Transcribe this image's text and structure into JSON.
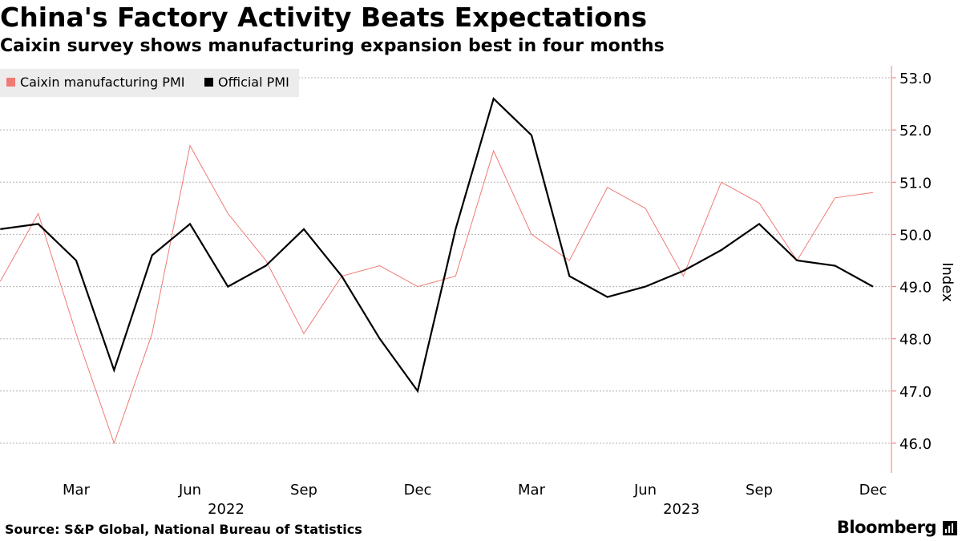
{
  "title": "China's Factory Activity Beats Expectations",
  "subtitle": "Caixin survey shows manufacturing expansion best in four months",
  "source": "Source: S&P Global, National Bureau of Statistics",
  "brand": "Bloomberg",
  "chart_data": {
    "type": "line",
    "ylabel": "Index",
    "ylim": [
      45.5,
      53.2
    ],
    "y_ticks": [
      "46.0",
      "47.0",
      "48.0",
      "49.0",
      "50.0",
      "51.0",
      "52.0",
      "53.0"
    ],
    "x_ticks": [
      {
        "month": "Mar",
        "year": ""
      },
      {
        "month": "Jun",
        "year": "2022"
      },
      {
        "month": "Sep",
        "year": ""
      },
      {
        "month": "Dec",
        "year": ""
      },
      {
        "month": "Mar",
        "year": ""
      },
      {
        "month": "Jun",
        "year": "2023"
      },
      {
        "month": "Sep",
        "year": ""
      },
      {
        "month": "Dec",
        "year": ""
      }
    ],
    "x": [
      "2022-01",
      "2022-02",
      "2022-03",
      "2022-04",
      "2022-05",
      "2022-06",
      "2022-07",
      "2022-08",
      "2022-09",
      "2022-10",
      "2022-11",
      "2022-12",
      "2023-01",
      "2023-02",
      "2023-03",
      "2023-04",
      "2023-05",
      "2023-06",
      "2023-07",
      "2023-08",
      "2023-09",
      "2023-10",
      "2023-11",
      "2023-12"
    ],
    "series": [
      {
        "name": "Caixin manufacturing PMI",
        "color": "#f07a74",
        "values": [
          49.1,
          50.4,
          48.1,
          46.0,
          48.1,
          51.7,
          50.4,
          49.5,
          48.1,
          49.2,
          49.4,
          49.0,
          49.2,
          51.6,
          50.0,
          49.5,
          50.9,
          50.5,
          49.2,
          51.0,
          50.6,
          49.5,
          50.7,
          50.8
        ]
      },
      {
        "name": "Official PMI",
        "color": "#000000",
        "values": [
          50.1,
          50.2,
          49.5,
          47.4,
          49.6,
          50.2,
          49.0,
          49.4,
          50.1,
          49.2,
          48.0,
          47.0,
          50.1,
          52.6,
          51.9,
          49.2,
          48.8,
          49.0,
          49.3,
          49.7,
          50.2,
          49.5,
          49.4,
          49.0
        ]
      }
    ],
    "grid": true,
    "legend": "top-left"
  }
}
